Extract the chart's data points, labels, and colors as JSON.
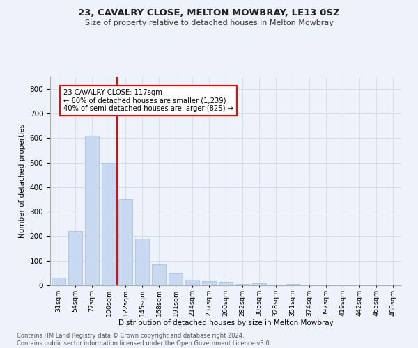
{
  "title1": "23, CAVALRY CLOSE, MELTON MOWBRAY, LE13 0SZ",
  "title2": "Size of property relative to detached houses in Melton Mowbray",
  "xlabel": "Distribution of detached houses by size in Melton Mowbray",
  "ylabel": "Number of detached properties",
  "bar_labels": [
    "31sqm",
    "54sqm",
    "77sqm",
    "100sqm",
    "122sqm",
    "145sqm",
    "168sqm",
    "191sqm",
    "214sqm",
    "237sqm",
    "260sqm",
    "282sqm",
    "305sqm",
    "328sqm",
    "351sqm",
    "374sqm",
    "397sqm",
    "419sqm",
    "442sqm",
    "465sqm",
    "488sqm"
  ],
  "bar_values": [
    30,
    220,
    610,
    500,
    350,
    190,
    85,
    50,
    23,
    17,
    15,
    7,
    8,
    2,
    5,
    0,
    0,
    0,
    0,
    0,
    0
  ],
  "bar_color": "#c8d8f0",
  "bar_edgecolor": "#a0b8d8",
  "vline_color": "red",
  "vline_x_index": 4,
  "annotation_text": "23 CAVALRY CLOSE: 117sqm\n← 60% of detached houses are smaller (1,239)\n40% of semi-detached houses are larger (825) →",
  "annotation_box_color": "white",
  "annotation_box_edgecolor": "red",
  "ylim": [
    0,
    850
  ],
  "yticks": [
    0,
    100,
    200,
    300,
    400,
    500,
    600,
    700,
    800
  ],
  "footnote": "Contains HM Land Registry data © Crown copyright and database right 2024.\nContains public sector information licensed under the Open Government Licence v3.0.",
  "background_color": "#eef2fb",
  "grid_color": "#d0d8e8"
}
